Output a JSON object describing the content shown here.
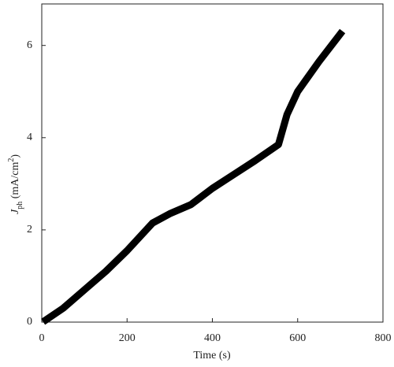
{
  "chart_data": {
    "type": "line",
    "xlabel": "Time (s)",
    "ylabel_parts": [
      "J",
      "ph",
      " (mA/cm",
      "2",
      ")"
    ],
    "x": [
      10,
      50,
      100,
      150,
      200,
      260,
      300,
      350,
      400,
      450,
      500,
      555,
      575,
      600,
      650,
      700
    ],
    "series": [
      {
        "color": "#000000",
        "values": [
          0.05,
          0.3,
          0.7,
          1.1,
          1.55,
          2.15,
          2.35,
          2.55,
          2.9,
          3.2,
          3.5,
          3.85,
          4.5,
          5.0,
          5.65,
          6.25
        ]
      }
    ],
    "xlim": [
      0,
      800
    ],
    "xticks": [
      0,
      200,
      400,
      600,
      800
    ],
    "ylim": [
      0,
      6.9
    ],
    "yticks": [
      0,
      2,
      4,
      6
    ]
  }
}
